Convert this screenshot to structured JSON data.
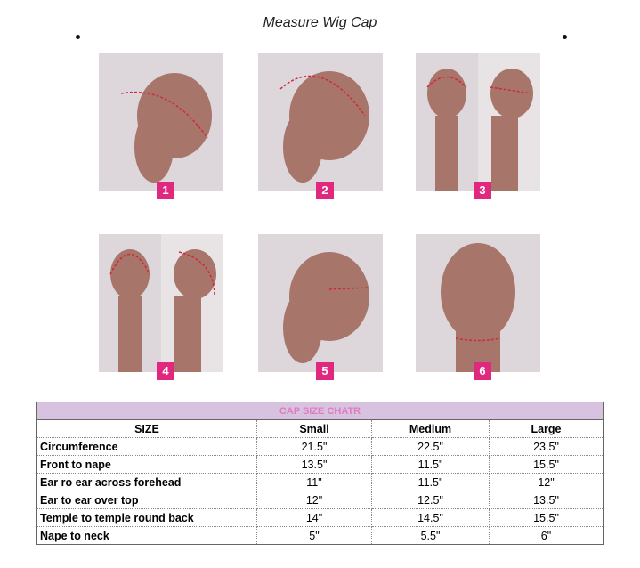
{
  "title": "Measure Wig Cap",
  "steps": [
    {
      "number": "1"
    },
    {
      "number": "2"
    },
    {
      "number": "3"
    },
    {
      "number": "4"
    },
    {
      "number": "5"
    },
    {
      "number": "6"
    }
  ],
  "table": {
    "caption": "CAP SIZE CHATR",
    "headers": [
      "SIZE",
      "Small",
      "Medium",
      "Large"
    ],
    "rows": [
      [
        "Circumference",
        "21.5\"",
        "22.5\"",
        "23.5\""
      ],
      [
        "Front to nape",
        "13.5\"",
        "11.5\"",
        "15.5\""
      ],
      [
        "Ear ro ear across forehead",
        "11\"",
        "11.5\"",
        "12\""
      ],
      [
        "Ear to ear over top",
        "12\"",
        "12.5\"",
        "13.5\""
      ],
      [
        "Temple to temple round back",
        "14\"",
        "14.5\"",
        "15.5\""
      ],
      [
        "Nape to neck",
        "5\"",
        "5.5\"",
        "6\""
      ]
    ]
  },
  "colors": {
    "badge": "#e0287e",
    "header": "#d7c2df",
    "skin": "#a8756a",
    "measure_line": "#d0283c"
  }
}
